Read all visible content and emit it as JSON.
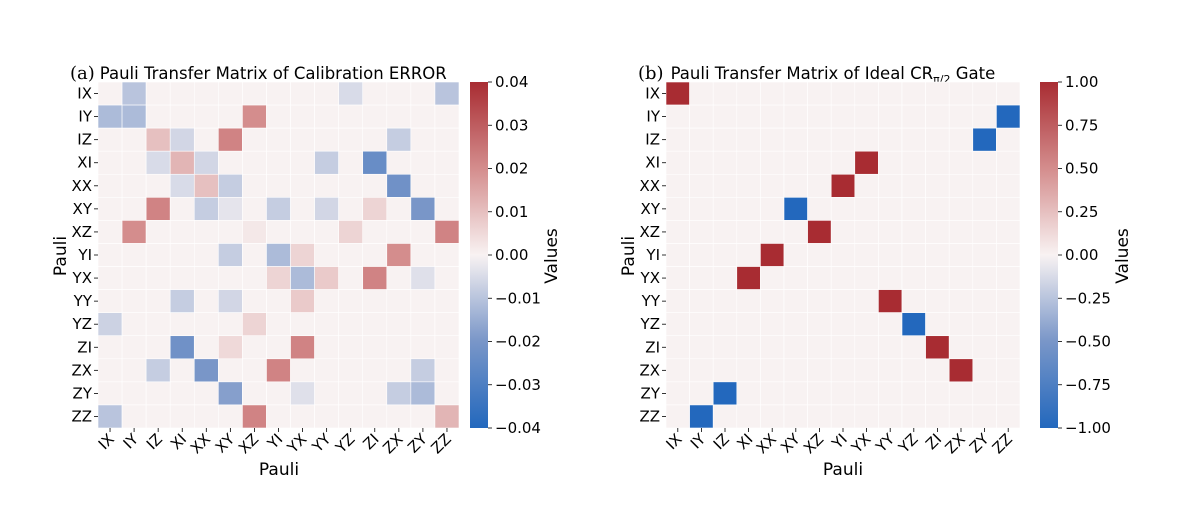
{
  "chart_data": [
    {
      "type": "heatmap",
      "panel_label": "(a)",
      "title": "Pauli Transfer Matrix of Calibration ERROR",
      "xlabel": "Pauli",
      "ylabel": "Pauli",
      "colorbar_label": "Values",
      "vmin": -0.04,
      "vmax": 0.04,
      "colorbar_ticks": [
        "0.04",
        "0.03",
        "0.02",
        "0.01",
        "0.00",
        "−0.01",
        "−0.02",
        "−0.03",
        "−0.04"
      ],
      "row_labels": [
        "IX",
        "IY",
        "IZ",
        "XI",
        "XX",
        "XY",
        "XZ",
        "YI",
        "YX",
        "YY",
        "YZ",
        "ZI",
        "ZX",
        "ZY",
        "ZZ"
      ],
      "col_labels": [
        "IX",
        "IY",
        "IZ",
        "XI",
        "XX",
        "XY",
        "XZ",
        "YI",
        "YX",
        "YY",
        "YZ",
        "ZI",
        "ZX",
        "ZY",
        "ZZ"
      ],
      "values": [
        [
          0.0,
          -0.01,
          0.0,
          0.0,
          0.0,
          0.0,
          0.0,
          0.0,
          0.0,
          0.0,
          -0.005,
          0.0,
          0.0,
          0.0,
          -0.01
        ],
        [
          -0.012,
          -0.012,
          0.0,
          0.0,
          0.0,
          0.0,
          0.02,
          0.0,
          0.0,
          0.0,
          0.0,
          0.0,
          0.0,
          0.0,
          0.0
        ],
        [
          0.0,
          0.0,
          0.01,
          -0.006,
          0.0,
          0.022,
          0.0,
          0.0,
          0.0,
          0.0,
          0.0,
          0.0,
          -0.008,
          0.0,
          0.0
        ],
        [
          0.0,
          0.0,
          -0.005,
          0.012,
          -0.006,
          0.0,
          0.0,
          0.0,
          0.0,
          -0.008,
          0.0,
          -0.024,
          0.0,
          0.0,
          0.0
        ],
        [
          0.0,
          0.0,
          0.0,
          -0.005,
          0.01,
          -0.008,
          0.0,
          0.0,
          0.0,
          0.0,
          0.0,
          0.0,
          -0.022,
          0.0,
          0.0
        ],
        [
          0.0,
          0.0,
          0.022,
          0.0,
          -0.008,
          -0.003,
          0.0,
          -0.008,
          0.0,
          -0.006,
          0.0,
          0.006,
          0.0,
          -0.02,
          0.0
        ],
        [
          0.0,
          0.02,
          0.0,
          0.0,
          0.0,
          0.0,
          0.002,
          0.0,
          0.0,
          0.0,
          0.006,
          0.0,
          0.0,
          0.0,
          0.022
        ],
        [
          0.0,
          0.0,
          0.0,
          0.0,
          0.0,
          -0.008,
          0.0,
          -0.012,
          0.006,
          0.0,
          0.0,
          0.0,
          0.02,
          0.0,
          0.0
        ],
        [
          0.0,
          0.0,
          0.0,
          0.0,
          0.0,
          0.0,
          0.0,
          0.006,
          -0.012,
          0.008,
          0.0,
          0.022,
          0.0,
          -0.004,
          0.0
        ],
        [
          0.0,
          0.0,
          0.0,
          -0.008,
          0.0,
          -0.006,
          0.0,
          0.0,
          0.008,
          0.0,
          0.0,
          0.0,
          0.0,
          0.0,
          0.0
        ],
        [
          -0.007,
          0.0,
          0.0,
          0.0,
          0.0,
          0.0,
          0.006,
          0.0,
          0.0,
          0.0,
          0.0,
          0.0,
          0.0,
          0.0,
          0.0
        ],
        [
          0.0,
          0.0,
          0.0,
          -0.022,
          0.0,
          0.005,
          0.0,
          0.0,
          0.022,
          0.0,
          0.0,
          0.0,
          0.0,
          0.0,
          0.0
        ],
        [
          0.0,
          0.0,
          -0.008,
          0.0,
          -0.02,
          0.0,
          0.0,
          0.022,
          0.0,
          0.0,
          0.0,
          0.0,
          0.0,
          -0.008,
          0.0
        ],
        [
          0.0,
          0.0,
          0.0,
          0.0,
          0.0,
          -0.018,
          0.0,
          0.0,
          -0.004,
          0.0,
          0.0,
          0.0,
          -0.008,
          -0.012,
          0.0
        ],
        [
          -0.01,
          0.0,
          0.0,
          0.0,
          0.0,
          0.0,
          0.022,
          0.0,
          0.0,
          0.0,
          0.0,
          0.0,
          0.0,
          0.0,
          0.012
        ]
      ]
    },
    {
      "type": "heatmap",
      "panel_label": "(b)",
      "title": "Pauli Transfer Matrix of Ideal CR",
      "title_subscript": "π/2",
      "title_suffix": " Gate",
      "xlabel": "Pauli",
      "ylabel": "Pauli",
      "colorbar_label": "Values",
      "vmin": -1.0,
      "vmax": 1.0,
      "colorbar_ticks": [
        "1.00",
        "0.75",
        "0.50",
        "0.25",
        "0.00",
        "−0.25",
        "−0.50",
        "−0.75",
        "−1.00"
      ],
      "row_labels": [
        "IX",
        "IY",
        "IZ",
        "XI",
        "XX",
        "XY",
        "XZ",
        "YI",
        "YX",
        "YY",
        "YZ",
        "ZI",
        "ZX",
        "ZY",
        "ZZ"
      ],
      "col_labels": [
        "IX",
        "IY",
        "IZ",
        "XI",
        "XX",
        "XY",
        "XZ",
        "YI",
        "YX",
        "YY",
        "YZ",
        "ZI",
        "ZX",
        "ZY",
        "ZZ"
      ],
      "values": [
        [
          1,
          0,
          0,
          0,
          0,
          0,
          0,
          0,
          0,
          0,
          0,
          0,
          0,
          0,
          0
        ],
        [
          0,
          0,
          0,
          0,
          0,
          0,
          0,
          0,
          0,
          0,
          0,
          0,
          0,
          0,
          -1
        ],
        [
          0,
          0,
          0,
          0,
          0,
          0,
          0,
          0,
          0,
          0,
          0,
          0,
          0,
          -1,
          0
        ],
        [
          0,
          0,
          0,
          0,
          0,
          0,
          0,
          0,
          1,
          0,
          0,
          0,
          0,
          0,
          0
        ],
        [
          0,
          0,
          0,
          0,
          0,
          0,
          0,
          1,
          0,
          0,
          0,
          0,
          0,
          0,
          0
        ],
        [
          0,
          0,
          0,
          0,
          0,
          -1,
          0,
          0,
          0,
          0,
          0,
          0,
          0,
          0,
          0
        ],
        [
          0,
          0,
          0,
          0,
          0,
          0,
          1,
          0,
          0,
          0,
          0,
          0,
          0,
          0,
          0
        ],
        [
          0,
          0,
          0,
          0,
          1,
          0,
          0,
          0,
          0,
          0,
          0,
          0,
          0,
          0,
          0
        ],
        [
          0,
          0,
          0,
          1,
          0,
          0,
          0,
          0,
          0,
          0,
          0,
          0,
          0,
          0,
          0
        ],
        [
          0,
          0,
          0,
          0,
          0,
          0,
          0,
          0,
          0,
          1,
          0,
          0,
          0,
          0,
          0
        ],
        [
          0,
          0,
          0,
          0,
          0,
          0,
          0,
          0,
          0,
          0,
          -1,
          0,
          0,
          0,
          0
        ],
        [
          0,
          0,
          0,
          0,
          0,
          0,
          0,
          0,
          0,
          0,
          0,
          1,
          0,
          0,
          0
        ],
        [
          0,
          0,
          0,
          0,
          0,
          0,
          0,
          0,
          0,
          0,
          0,
          0,
          1,
          0,
          0
        ],
        [
          0,
          0,
          -1,
          0,
          0,
          0,
          0,
          0,
          0,
          0,
          0,
          0,
          0,
          0,
          0
        ],
        [
          0,
          -1,
          0,
          0,
          0,
          0,
          0,
          0,
          0,
          0,
          0,
          0,
          0,
          0,
          0
        ]
      ]
    }
  ]
}
